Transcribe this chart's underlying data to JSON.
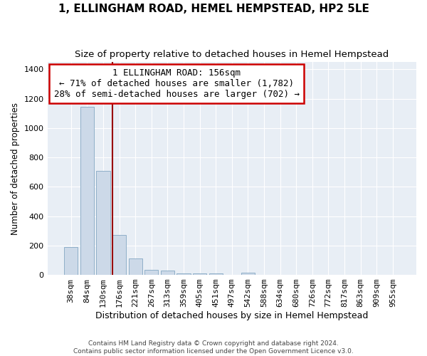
{
  "title": "1, ELLINGHAM ROAD, HEMEL HEMPSTEAD, HP2 5LE",
  "subtitle": "Size of property relative to detached houses in Hemel Hempstead",
  "xlabel": "Distribution of detached houses by size in Hemel Hempstead",
  "ylabel": "Number of detached properties",
  "footer_line1": "Contains HM Land Registry data © Crown copyright and database right 2024.",
  "footer_line2": "Contains public sector information licensed under the Open Government Licence v3.0.",
  "annotation_line1": "1 ELLINGHAM ROAD: 156sqm",
  "annotation_line2": "← 71% of detached houses are smaller (1,782)",
  "annotation_line3": "28% of semi-detached houses are larger (702) →",
  "bar_color": "#ccd9e8",
  "bar_edge_color": "#8fafc8",
  "plot_bg_color": "#e8eef5",
  "grid_color": "#ffffff",
  "redline_color": "#990000",
  "annotation_box_edge": "#cc0000",
  "bins": [
    "38sqm",
    "84sqm",
    "130sqm",
    "176sqm",
    "221sqm",
    "267sqm",
    "313sqm",
    "359sqm",
    "405sqm",
    "451sqm",
    "497sqm",
    "542sqm",
    "588sqm",
    "634sqm",
    "680sqm",
    "726sqm",
    "772sqm",
    "817sqm",
    "863sqm",
    "909sqm",
    "955sqm"
  ],
  "values": [
    190,
    1145,
    710,
    270,
    110,
    35,
    30,
    10,
    10,
    10,
    0,
    15,
    0,
    0,
    0,
    0,
    0,
    0,
    0,
    0,
    0
  ],
  "redline_x": 2.6,
  "ylim": [
    0,
    1450
  ],
  "yticks": [
    0,
    200,
    400,
    600,
    800,
    1000,
    1200,
    1400
  ],
  "title_fontsize": 11,
  "subtitle_fontsize": 9.5,
  "axis_label_fontsize": 9,
  "tick_fontsize": 8,
  "annotation_fontsize": 9,
  "ylabel_fontsize": 8.5
}
